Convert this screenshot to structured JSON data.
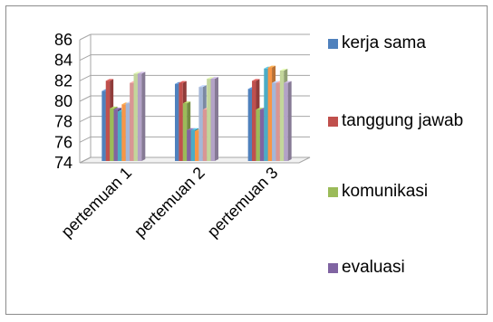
{
  "chart_data": {
    "type": "bar",
    "style": "3d-clustered-column",
    "categories": [
      "pertemuan 1",
      "pertemuan 2",
      "pertemuan 3"
    ],
    "ylim": [
      74,
      86
    ],
    "yticks": [
      74,
      76,
      78,
      80,
      82,
      84,
      86
    ],
    "grid": true,
    "legend_position": "right",
    "series": [
      {
        "name": "kerja sama",
        "color": "#4f81bd",
        "values": [
          81,
          81.7,
          81.2
        ]
      },
      {
        "name": "tanggung jawab",
        "color": "#c0504d",
        "values": [
          82,
          81.8,
          82
        ]
      },
      {
        "name": "komunikasi",
        "color": "#9bbb59",
        "values": [
          79.3,
          79.8,
          79.2
        ]
      },
      {
        "name": "evaluasi",
        "color": "#8064a2",
        "values": [
          79.2,
          77.2,
          79.2
        ]
      },
      {
        "name": "",
        "color": "#4bacc6",
        "values": [
          79,
          77.2,
          83.2
        ]
      },
      {
        "name": "",
        "color": "#f79646",
        "values": [
          79.7,
          77.1,
          83.3
        ]
      },
      {
        "name": "",
        "color": "#a5b7d8",
        "values": [
          79.8,
          81.4,
          81.8
        ]
      },
      {
        "name": "",
        "color": "#d99694",
        "values": [
          81.8,
          79.2,
          81.8
        ]
      },
      {
        "name": "",
        "color": "#c3d69b",
        "values": [
          82.7,
          82.2,
          83
        ]
      },
      {
        "name": "",
        "color": "#b3a2c7",
        "values": [
          82.7,
          82.2,
          81.8
        ]
      }
    ]
  },
  "legend": {
    "items": [
      {
        "label": "kerja sama",
        "color": "#4f81bd"
      },
      {
        "label": "tanggung jawab",
        "color": "#c0504d"
      },
      {
        "label": "komunikasi",
        "color": "#9bbb59"
      },
      {
        "label": "evaluasi",
        "color": "#8064a2"
      }
    ]
  }
}
